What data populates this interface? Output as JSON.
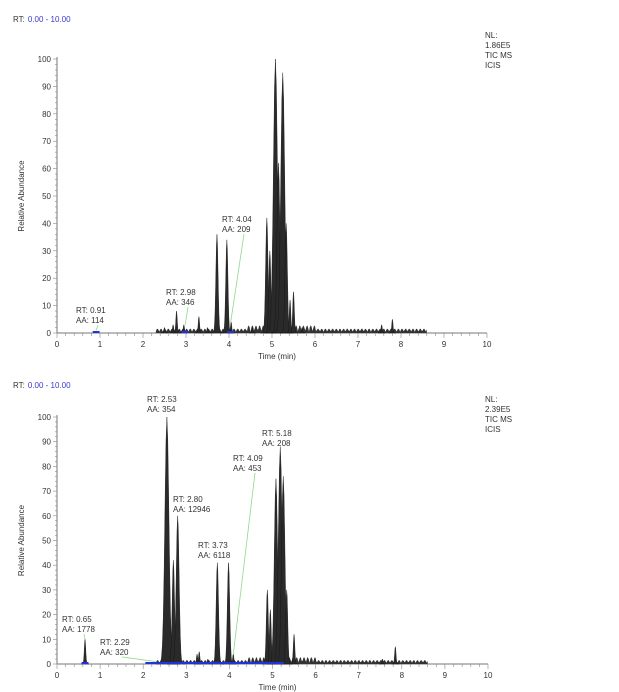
{
  "chart_data": [
    {
      "type": "line",
      "range_label": "RT:",
      "range_value": "0.00 - 10.00",
      "info": [
        "NL:",
        "1.86E5",
        "TIC  MS",
        "ICIS"
      ],
      "xlabel": "Time (min)",
      "ylabel": "Relative Abundance",
      "xlim": [
        0,
        10
      ],
      "ylim": [
        0,
        100
      ],
      "xticks": [
        0,
        1,
        2,
        3,
        4,
        5,
        6,
        7,
        8,
        9,
        10
      ],
      "yticks": [
        0,
        10,
        20,
        30,
        40,
        50,
        60,
        70,
        80,
        90,
        100
      ],
      "peaks": [
        [
          2.5,
          2
        ],
        [
          2.7,
          3
        ],
        [
          2.78,
          8
        ],
        [
          2.95,
          3
        ],
        [
          3.3,
          6
        ],
        [
          3.5,
          2
        ],
        [
          3.72,
          36
        ],
        [
          3.95,
          34
        ],
        [
          4.05,
          4
        ],
        [
          4.55,
          2
        ],
        [
          4.88,
          42
        ],
        [
          4.95,
          30
        ],
        [
          5.08,
          100
        ],
        [
          5.15,
          62
        ],
        [
          5.25,
          95
        ],
        [
          5.33,
          40
        ],
        [
          5.42,
          12
        ],
        [
          5.5,
          15
        ],
        [
          5.7,
          2
        ],
        [
          7.55,
          3
        ],
        [
          7.8,
          5
        ]
      ],
      "annotations": [
        {
          "rt_line": "RT: 0.91",
          "aa_line": "AA: 114",
          "rt": 0.91
        },
        {
          "rt_line": "RT: 2.98",
          "aa_line": "AA: 346",
          "rt": 2.98
        },
        {
          "rt_line": "RT: 4.04",
          "aa_line": "AA: 209",
          "rt": 4.04
        }
      ]
    },
    {
      "type": "line",
      "range_label": "RT:",
      "range_value": "0.00 - 10.00",
      "info": [
        "NL:",
        "2.39E5",
        "TIC  MS",
        "ICIS"
      ],
      "xlabel": "Time (min)",
      "ylabel": "Relative Abundance",
      "xlim": [
        0,
        10
      ],
      "ylim": [
        0,
        100
      ],
      "xticks": [
        0,
        1,
        2,
        3,
        4,
        5,
        6,
        7,
        8,
        9,
        10
      ],
      "yticks": [
        0,
        10,
        20,
        30,
        40,
        50,
        60,
        70,
        80,
        90,
        100
      ],
      "peaks": [
        [
          0.65,
          10
        ],
        [
          2.55,
          100
        ],
        [
          2.7,
          42
        ],
        [
          2.8,
          60
        ],
        [
          3.25,
          4
        ],
        [
          3.3,
          5
        ],
        [
          3.5,
          2
        ],
        [
          3.72,
          41
        ],
        [
          3.98,
          41
        ],
        [
          4.09,
          4
        ],
        [
          4.88,
          30
        ],
        [
          4.95,
          22
        ],
        [
          5.08,
          75
        ],
        [
          5.18,
          88
        ],
        [
          5.25,
          76
        ],
        [
          5.33,
          30
        ],
        [
          5.5,
          12
        ],
        [
          7.55,
          2
        ],
        [
          7.85,
          7
        ]
      ],
      "annotations": [
        {
          "rt_line": "RT: 0.65",
          "aa_line": "AA: 1778",
          "rt": 0.65
        },
        {
          "rt_line": "RT: 2.29",
          "aa_line": "AA: 320",
          "rt": 2.29
        },
        {
          "rt_line": "RT: 2.53",
          "aa_line": "AA: 354",
          "rt": 2.53
        },
        {
          "rt_line": "RT: 2.80",
          "aa_line": "AA: 12946",
          "rt": 2.8
        },
        {
          "rt_line": "RT: 3.73",
          "aa_line": "AA: 6118",
          "rt": 3.73
        },
        {
          "rt_line": "RT: 4.09",
          "aa_line": "AA: 453",
          "rt": 4.09
        },
        {
          "rt_line": "RT: 5.18",
          "aa_line": "AA: 208",
          "rt": 5.18
        }
      ]
    }
  ]
}
